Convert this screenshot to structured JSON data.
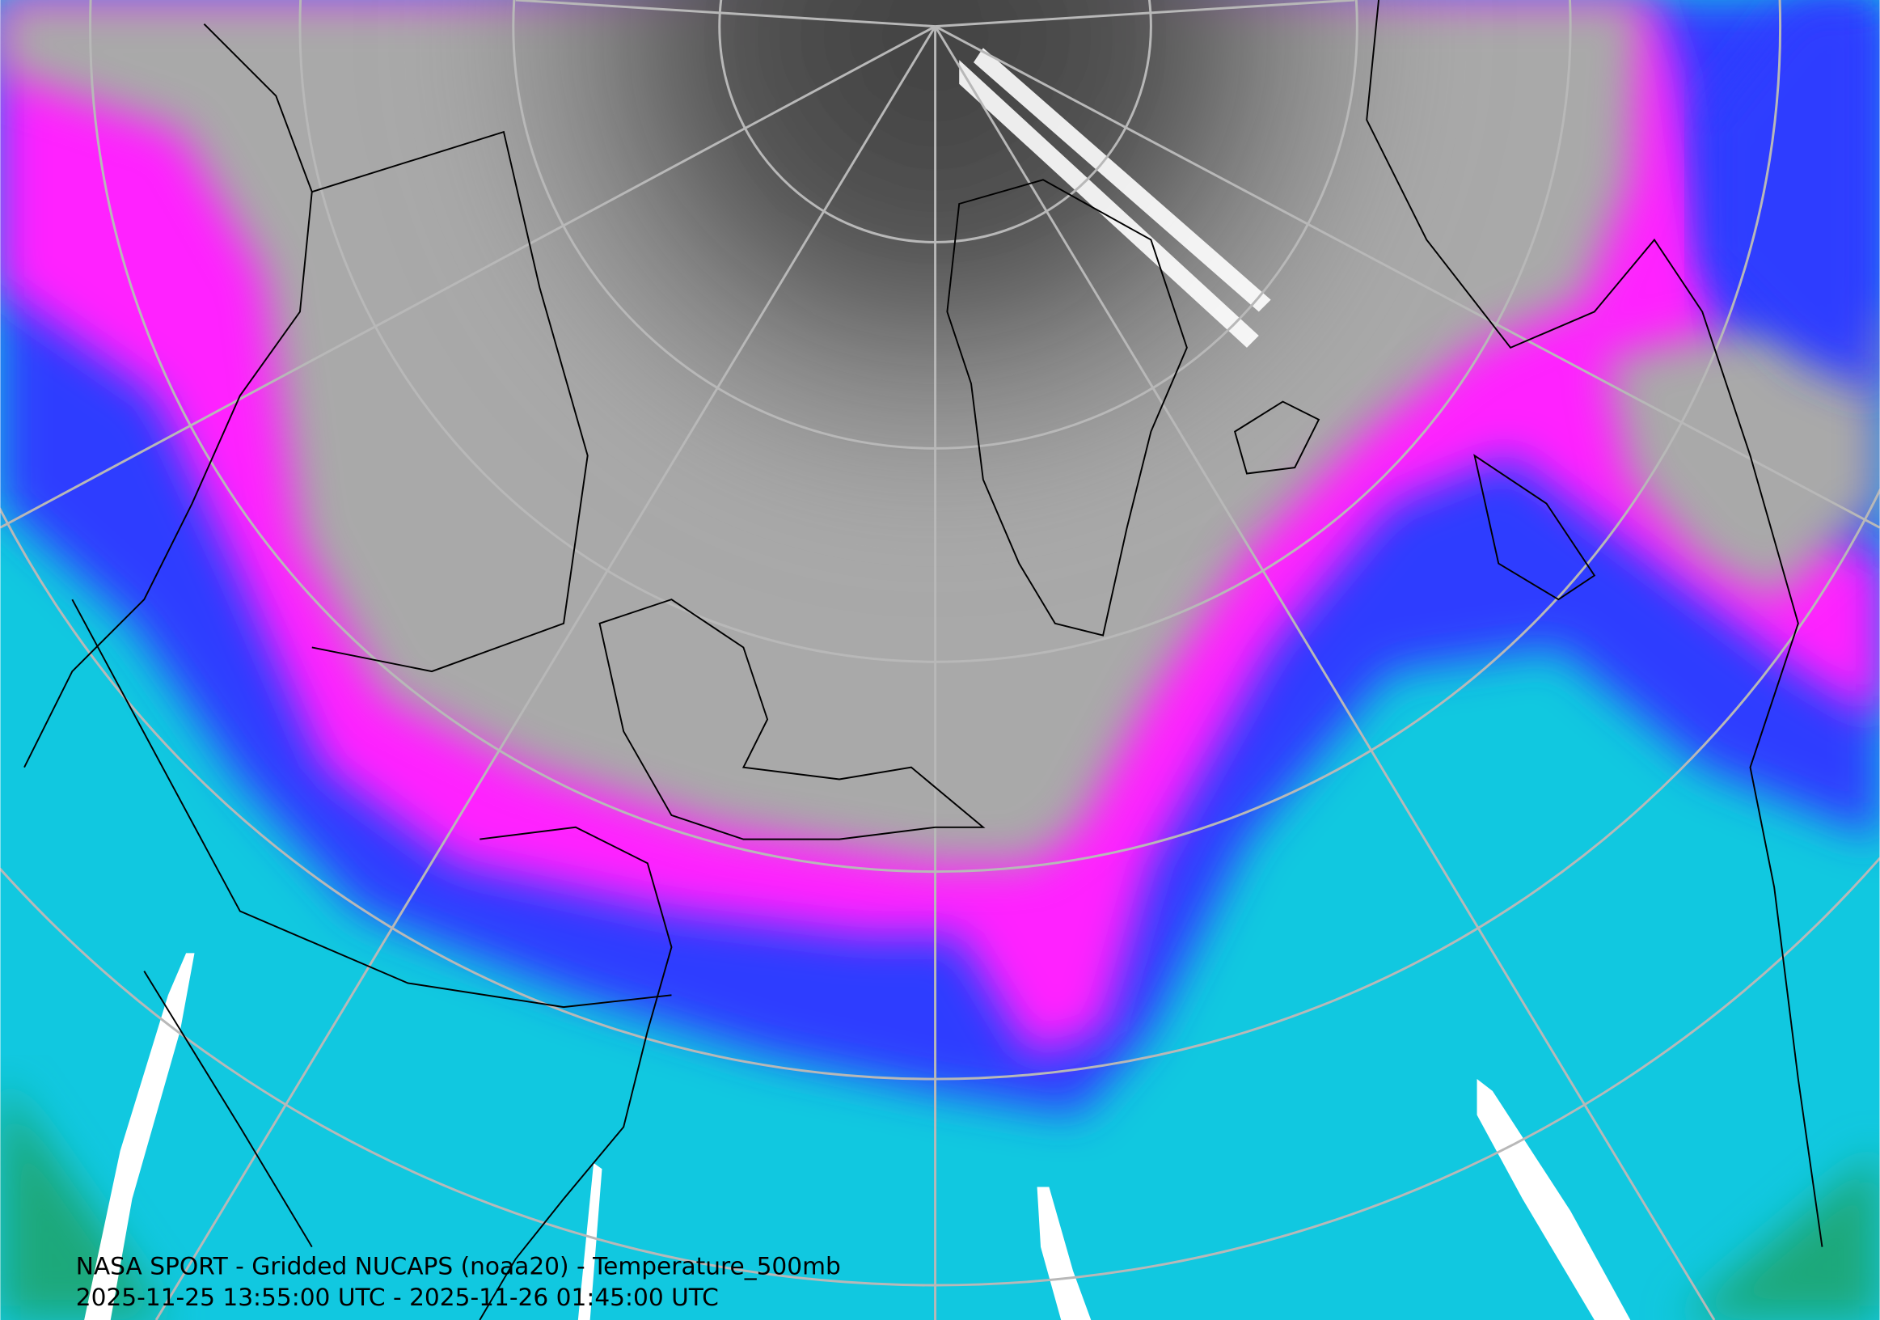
{
  "caption": {
    "line1": "NASA SPORT - Gridded NUCAPS (noaa20) - Temperature_500mb",
    "line2": "2025-11-25 13:55:00 UTC - 2025-11-26 01:45:00 UTC"
  }
}
